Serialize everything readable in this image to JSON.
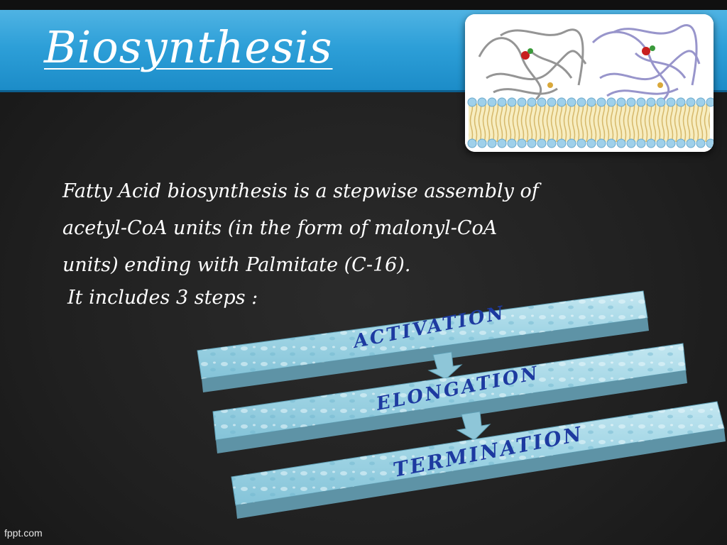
{
  "slide": {
    "title": "Biosynthesis",
    "body_lines": [
      "Fatty Acid biosynthesis is a  stepwise  assembly of",
      "acetyl-CoA units  (in the form of malonyl-CoA",
      "units) ending with  Palmitate (C-16)."
    ],
    "steps_intro": "It includes 3 steps :",
    "steps": [
      "ACTIVATION",
      "ELONGATION",
      "TERMINATION"
    ],
    "footer": "fppt.com"
  },
  "colors": {
    "title_band": "#2d9fd8",
    "background": "#202020",
    "step_bar": "#9fd4e4",
    "step_text": "#1d3aa0"
  },
  "icons": {
    "illustration": "enzyme-on-membrane-image",
    "connector": "down-arrow-icon"
  }
}
